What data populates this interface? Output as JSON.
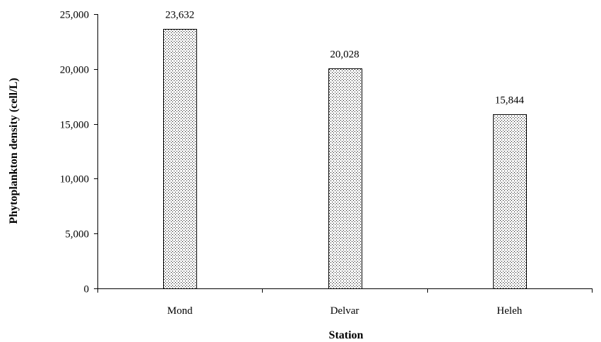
{
  "chart_data": {
    "type": "bar",
    "categories": [
      "Mond",
      "Delvar",
      "Heleh"
    ],
    "values": [
      23632,
      20028,
      15844
    ],
    "data_labels": [
      "23,632",
      "20,028",
      "15,844"
    ],
    "xlabel": "Station",
    "ylabel": "Phytoplankton density (cell/L)",
    "ylim": [
      0,
      25000
    ],
    "yticks": [
      0,
      5000,
      10000,
      15000,
      20000,
      25000
    ],
    "ytick_labels": [
      "0",
      "5,000",
      "10,000",
      "15,000",
      "20,000",
      "25,000"
    ],
    "grid": false,
    "legend": "none",
    "bar_fill": "dotted",
    "colors": {
      "bar_fill": "#ffffff",
      "bar_dots": "#000000",
      "axis": "#000000",
      "text": "#000000"
    }
  }
}
